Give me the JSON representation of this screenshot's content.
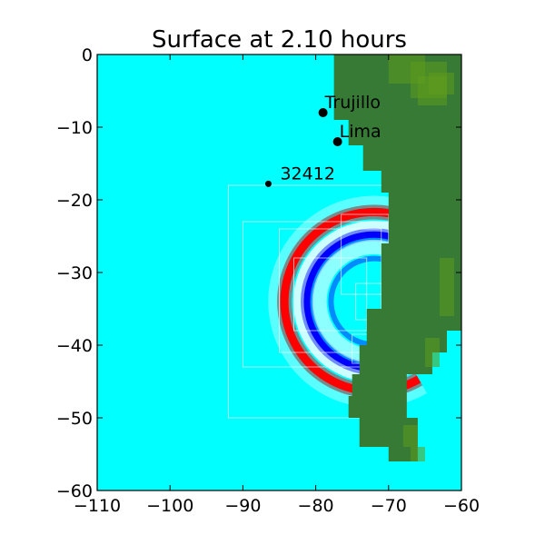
{
  "chart_data": {
    "type": "heatmap",
    "title": "Surface at 2.10 hours",
    "xlabel": "",
    "ylabel": "",
    "xlim": [
      -110,
      -60
    ],
    "ylim": [
      -60,
      0
    ],
    "x_ticks": [
      -110,
      -100,
      -90,
      -80,
      -70,
      -60
    ],
    "y_ticks": [
      0,
      -10,
      -20,
      -30,
      -40,
      -50,
      -60
    ],
    "x_tick_labels": [
      "−110",
      "−100",
      "−90",
      "−80",
      "−70",
      "−60"
    ],
    "y_tick_labels": [
      "0",
      "−10",
      "−20",
      "−30",
      "−40",
      "−50",
      "−60"
    ],
    "grid": false,
    "colors": {
      "ocean": "#00ffff",
      "land": "#367a36",
      "land_high": "#5f9a1e",
      "wave_crest": "#ff0000",
      "wave_trough": "#0000ff"
    },
    "locations": [
      {
        "name": "Trujillo",
        "lon": -79.0,
        "lat": -8.0
      },
      {
        "name": "Lima",
        "lon": -77.0,
        "lat": -12.0
      },
      {
        "name": "32412",
        "lon": -86.5,
        "lat": -17.8
      }
    ],
    "coastline": [
      [
        -60,
        0
      ],
      [
        -77.5,
        0
      ],
      [
        -77.5,
        -9
      ],
      [
        -75.5,
        -9
      ],
      [
        -75.5,
        -12.5
      ],
      [
        -73.5,
        -12.5
      ],
      [
        -73.5,
        -16
      ],
      [
        -71,
        -16
      ],
      [
        -71,
        -19
      ],
      [
        -70,
        -19
      ],
      [
        -70,
        -26
      ],
      [
        -71,
        -26
      ],
      [
        -71,
        -35
      ],
      [
        -73,
        -35
      ],
      [
        -73,
        -40
      ],
      [
        -74,
        -40
      ],
      [
        -74,
        -44
      ],
      [
        -75,
        -44
      ],
      [
        -75,
        -47
      ],
      [
        -75.5,
        -47
      ],
      [
        -75.5,
        -50
      ],
      [
        -74,
        -50
      ],
      [
        -74,
        -54
      ],
      [
        -70,
        -54
      ],
      [
        -70,
        -56
      ],
      [
        -66,
        -56
      ],
      [
        -66,
        -50
      ],
      [
        -67.5,
        -50
      ],
      [
        -67.5,
        -44
      ],
      [
        -64,
        -44
      ],
      [
        -64,
        -41
      ],
      [
        -62,
        -41
      ],
      [
        -62,
        -38
      ],
      [
        -60,
        -38
      ]
    ],
    "wavefront": {
      "center_lon": -72.0,
      "center_lat": -34.0,
      "inner_crest_radius_deg": 10.2,
      "outer_crest_radius_deg": 12.3,
      "trough_radius_deg": 7.5
    },
    "amr_patches": [
      [
        -92,
        -18,
        -68,
        -50
      ],
      [
        -90,
        -23,
        -70,
        -43
      ],
      [
        -85,
        -24,
        -71,
        -41
      ],
      [
        -83,
        -28,
        -73,
        -38
      ],
      [
        -76.5,
        -22,
        -70,
        -33
      ],
      [
        -74.5,
        -31.5,
        -71,
        -36.5
      ],
      [
        -75,
        -38.5,
        -72,
        -42.5
      ]
    ]
  }
}
